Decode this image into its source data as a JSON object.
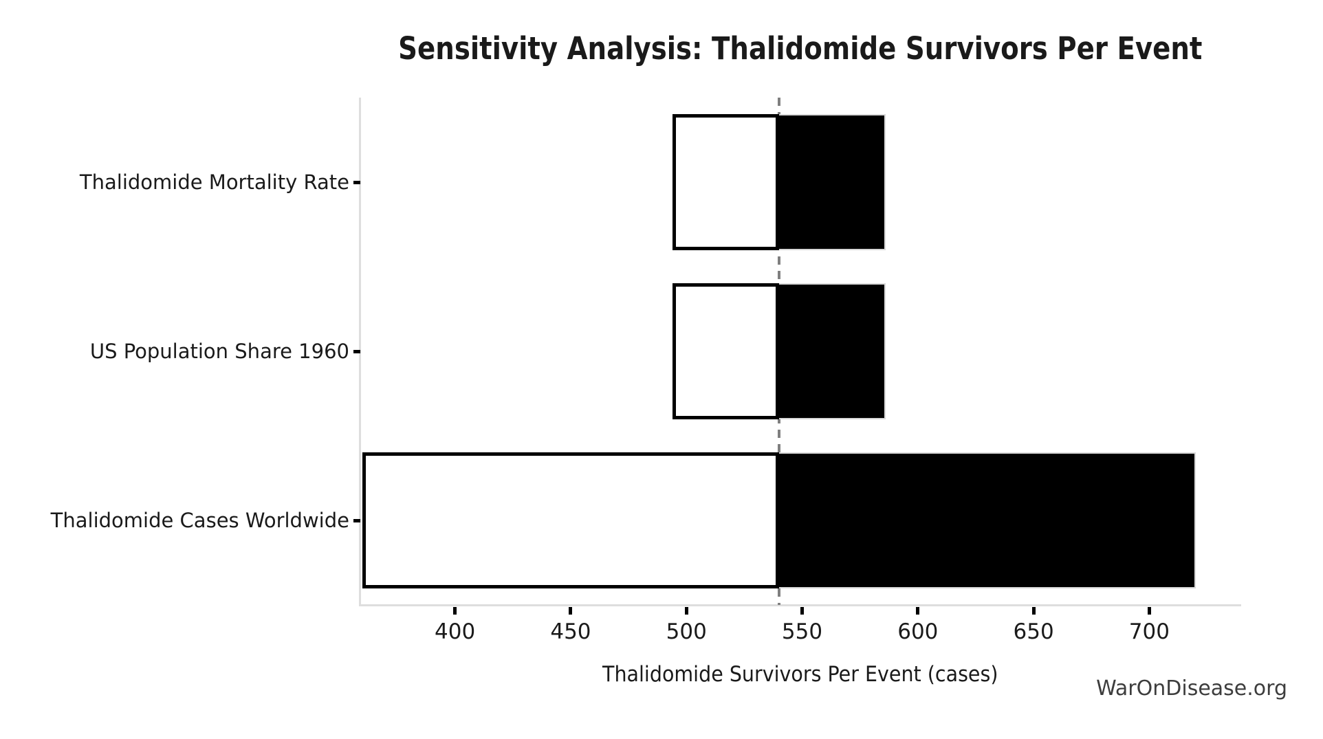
{
  "title": "Sensitivity Analysis: Thalidomide Survivors Per Event",
  "watermark": "WarOnDisease.org",
  "chart_data": {
    "type": "bar",
    "subtype": "tornado",
    "orientation": "horizontal",
    "title": "Sensitivity Analysis: Thalidomide Survivors Per Event",
    "xlabel": "Thalidomide Survivors Per Event (cases)",
    "ylabel": "",
    "baseline": 540,
    "xlim": [
      359.4,
      738.8
    ],
    "x_ticks": [
      400,
      450,
      500,
      550,
      600,
      650,
      700
    ],
    "grid": "off",
    "legend": "none",
    "categories": [
      "Thalidomide Mortality Rate",
      "US Population Share 1960",
      "Thalidomide Cases Worldwide"
    ],
    "rows": [
      {
        "label": "Thalidomide Mortality Rate",
        "low": 494,
        "high": 586
      },
      {
        "label": "US Population Share 1960",
        "low": 494,
        "high": 586
      },
      {
        "label": "Thalidomide Cases Worldwide",
        "low": 360,
        "high": 720
      }
    ],
    "colors": {
      "low_fill": "#ffffff",
      "low_edge": "#000000",
      "high_fill": "#000000",
      "high_edge": "#d9d9d9",
      "baseline": "#7f7f7f",
      "spine": "#dedede",
      "tick_mark": "#000000",
      "text": "#1a1a1a",
      "watermark_text": "#3d3d3d"
    }
  }
}
